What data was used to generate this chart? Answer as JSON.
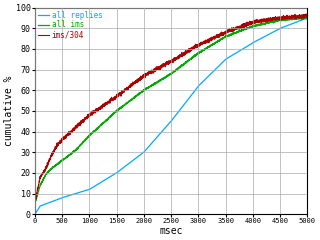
{
  "xlabel": "msec",
  "ylabel": "cumulative %",
  "xlim": [
    0,
    5000
  ],
  "ylim": [
    0,
    100
  ],
  "xticks": [
    0,
    500,
    1000,
    1500,
    2000,
    2500,
    3000,
    3500,
    4000,
    4500,
    5000
  ],
  "yticks": [
    0,
    10,
    20,
    30,
    40,
    50,
    60,
    70,
    80,
    90,
    100
  ],
  "legend": [
    {
      "label": "all replies",
      "color": "#00aaff"
    },
    {
      "label": "all ims",
      "color": "#00aa00"
    },
    {
      "label": "ims/304",
      "color": "#aa0000"
    }
  ],
  "bg_color": "#ffffff",
  "grid_color": "#aaaaaa",
  "font_family": "monospace",
  "all_replies_keypoints": [
    [
      0,
      0
    ],
    [
      100,
      4
    ],
    [
      300,
      6
    ],
    [
      500,
      8
    ],
    [
      1000,
      12
    ],
    [
      1500,
      20
    ],
    [
      2000,
      30
    ],
    [
      2500,
      45
    ],
    [
      3000,
      62
    ],
    [
      3500,
      75
    ],
    [
      4000,
      83
    ],
    [
      4500,
      90
    ],
    [
      5000,
      95
    ]
  ],
  "all_ims_keypoints": [
    [
      0,
      5
    ],
    [
      100,
      14
    ],
    [
      200,
      19
    ],
    [
      300,
      22
    ],
    [
      500,
      26
    ],
    [
      750,
      31
    ],
    [
      1000,
      38
    ],
    [
      1500,
      50
    ],
    [
      2000,
      60
    ],
    [
      2500,
      68
    ],
    [
      3000,
      78
    ],
    [
      3500,
      86
    ],
    [
      4000,
      91
    ],
    [
      4500,
      94
    ],
    [
      5000,
      95
    ]
  ],
  "ims304_keypoints": [
    [
      0,
      5
    ],
    [
      100,
      18
    ],
    [
      200,
      22
    ],
    [
      300,
      28
    ],
    [
      400,
      33
    ],
    [
      500,
      36
    ],
    [
      750,
      42
    ],
    [
      1000,
      48
    ],
    [
      1500,
      57
    ],
    [
      2000,
      67
    ],
    [
      2500,
      74
    ],
    [
      3000,
      82
    ],
    [
      3500,
      88
    ],
    [
      4000,
      93
    ],
    [
      4500,
      95
    ],
    [
      5000,
      96
    ]
  ]
}
